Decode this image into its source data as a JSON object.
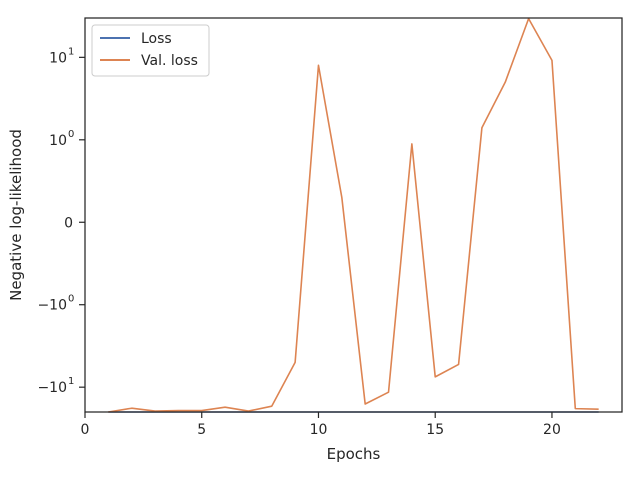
{
  "chart_data": {
    "type": "line",
    "title": "",
    "xlabel": "Epochs",
    "ylabel": "Negative log-likelihood",
    "yscale": "symlog",
    "xlim": [
      0,
      23
    ],
    "ylim": [
      -20,
      30
    ],
    "grid": false,
    "legend_position": "top-left",
    "x_ticks": [
      0,
      5,
      10,
      15,
      20
    ],
    "y_ticks": [
      {
        "value": 10,
        "base": "10",
        "exp": "1"
      },
      {
        "value": 1,
        "base": "10",
        "exp": "0"
      },
      {
        "value": 0,
        "base": "0",
        "exp": ""
      },
      {
        "value": -1,
        "base": "−10",
        "exp": "0"
      },
      {
        "value": -10,
        "base": "−10",
        "exp": "1"
      }
    ],
    "x": [
      1,
      2,
      3,
      4,
      5,
      6,
      7,
      8,
      9,
      10,
      11,
      12,
      13,
      14,
      15,
      16,
      17,
      18,
      19,
      20,
      21,
      22
    ],
    "series": [
      {
        "name": "Loss",
        "color": "#4c72b0",
        "values": [
          -20,
          -20,
          -20,
          -20,
          -20,
          -20,
          -20,
          -20,
          -20,
          -20,
          -20,
          -20,
          -20,
          -20,
          -20,
          -20,
          -20,
          -20,
          -20,
          -20,
          -20,
          -20
        ]
      },
      {
        "name": "Val. loss",
        "color": "#dd8452",
        "values": [
          -20,
          -18,
          -19.5,
          -19.2,
          -19.2,
          -17.5,
          -19.5,
          -17,
          -5,
          8,
          0.3,
          -16,
          -11.5,
          0.95,
          -7.5,
          -5.3,
          1.4,
          5,
          29.5,
          9.2,
          -18.2,
          -18.5
        ]
      }
    ]
  }
}
